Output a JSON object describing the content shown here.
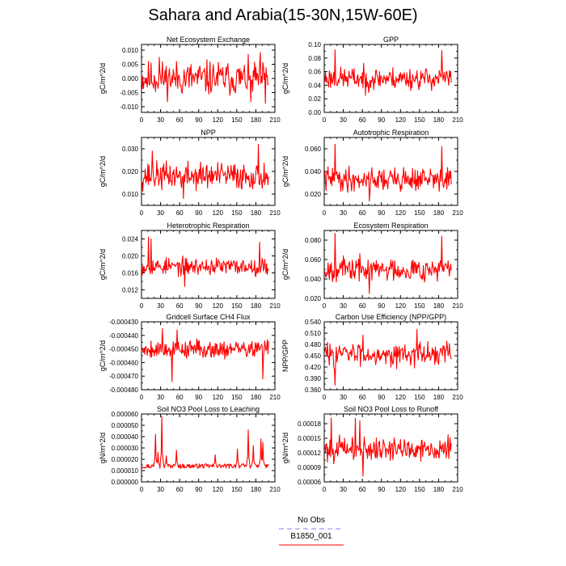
{
  "title": "Sahara and Arabia(15-30N,15W-60E)",
  "legend": {
    "entries": [
      {
        "label": "No Obs",
        "color": "#8080ff",
        "style": "dashed"
      },
      {
        "label": "B1850_001",
        "color": "#ff0000",
        "style": "solid"
      }
    ]
  },
  "colors": {
    "series": "#ff0000",
    "axis": "#000000",
    "background": "#ffffff"
  },
  "chart_data": [
    {
      "type": "line",
      "title": "Net Ecosystem Exchange",
      "ylabel": "gC/m^2/d",
      "xlim": [
        0,
        210
      ],
      "ylim": [
        -0.012,
        0.012
      ],
      "xticks": [
        0,
        30,
        60,
        90,
        120,
        150,
        180,
        210
      ],
      "yticks": [
        -0.01,
        -0.005,
        0.0,
        0.005,
        0.01
      ],
      "yticklabels": [
        "-0.010",
        "-0.005",
        "0.000",
        "0.005",
        "0.010"
      ],
      "series": [
        {
          "name": "B1850_001",
          "n": 200,
          "mean": 0.0,
          "amp": 0.0045,
          "min": -0.009,
          "max": 0.0095,
          "seed": 11,
          "spikes": [
            [
              186,
              0.0092
            ],
            [
              194,
              -0.0088
            ],
            [
              27,
              0.0075
            ],
            [
              171,
              -0.0082
            ]
          ]
        }
      ]
    },
    {
      "type": "line",
      "title": "GPP",
      "ylabel": "gC/m^2/d",
      "xlim": [
        0,
        210
      ],
      "ylim": [
        0.0,
        0.1
      ],
      "xticks": [
        0,
        30,
        60,
        90,
        120,
        150,
        180,
        210
      ],
      "yticks": [
        0.0,
        0.02,
        0.04,
        0.06,
        0.08,
        0.1
      ],
      "yticklabels": [
        "0.00",
        "0.02",
        "0.04",
        "0.06",
        "0.08",
        "0.10"
      ],
      "series": [
        {
          "name": "B1850_001",
          "n": 200,
          "mean": 0.05,
          "amp": 0.012,
          "min": 0.02,
          "max": 0.093,
          "seed": 23,
          "spikes": [
            [
              16,
              0.092
            ],
            [
              184,
              0.091
            ],
            [
              64,
              0.025
            ]
          ]
        }
      ]
    },
    {
      "type": "line",
      "title": "NPP",
      "ylabel": "gC/m^2/d",
      "xlim": [
        0,
        210
      ],
      "ylim": [
        0.005,
        0.035
      ],
      "xticks": [
        0,
        30,
        60,
        90,
        120,
        150,
        180,
        210
      ],
      "yticks": [
        0.01,
        0.02,
        0.03
      ],
      "yticklabels": [
        "0.010",
        "0.020",
        "0.030"
      ],
      "series": [
        {
          "name": "B1850_001",
          "n": 200,
          "mean": 0.018,
          "amp": 0.0045,
          "min": 0.007,
          "max": 0.033,
          "seed": 37,
          "spikes": [
            [
              183,
              0.032
            ],
            [
              16,
              0.029
            ],
            [
              65,
              0.008
            ]
          ]
        }
      ]
    },
    {
      "type": "line",
      "title": "Autotrophic Respiration",
      "ylabel": "gC/m^2/d",
      "xlim": [
        0,
        210
      ],
      "ylim": [
        0.01,
        0.07
      ],
      "xticks": [
        0,
        30,
        60,
        90,
        120,
        150,
        180,
        210
      ],
      "yticks": [
        0.02,
        0.04,
        0.06
      ],
      "yticklabels": [
        "0.020",
        "0.040",
        "0.060"
      ],
      "series": [
        {
          "name": "B1850_001",
          "n": 200,
          "mean": 0.033,
          "amp": 0.008,
          "min": 0.014,
          "max": 0.065,
          "seed": 41,
          "spikes": [
            [
              16,
              0.064
            ],
            [
              184,
              0.062
            ],
            [
              70,
              0.014
            ]
          ]
        }
      ]
    },
    {
      "type": "line",
      "title": "Heterotrophic Respiration",
      "ylabel": "gC/m^2/d",
      "xlim": [
        0,
        210
      ],
      "ylim": [
        0.01,
        0.026
      ],
      "xticks": [
        0,
        30,
        60,
        90,
        120,
        150,
        180,
        210
      ],
      "yticks": [
        0.012,
        0.016,
        0.02,
        0.024
      ],
      "yticklabels": [
        "0.012",
        "0.016",
        "0.020",
        "0.024"
      ],
      "series": [
        {
          "name": "B1850_001",
          "n": 200,
          "mean": 0.0175,
          "amp": 0.0015,
          "min": 0.0125,
          "max": 0.025,
          "seed": 53,
          "spikes": [
            [
              10,
              0.0245
            ],
            [
              14,
              0.024
            ],
            [
              67,
              0.0128
            ],
            [
              185,
              0.0232
            ]
          ]
        }
      ]
    },
    {
      "type": "line",
      "title": "Ecosystem Respiration",
      "ylabel": "gC/m^2/d",
      "xlim": [
        0,
        210
      ],
      "ylim": [
        0.02,
        0.09
      ],
      "xticks": [
        0,
        30,
        60,
        90,
        120,
        150,
        180,
        210
      ],
      "yticks": [
        0.02,
        0.04,
        0.06,
        0.08
      ],
      "yticklabels": [
        "0.020",
        "0.040",
        "0.060",
        "0.080"
      ],
      "series": [
        {
          "name": "B1850_001",
          "n": 200,
          "mean": 0.05,
          "amp": 0.009,
          "min": 0.024,
          "max": 0.088,
          "seed": 67,
          "spikes": [
            [
              16,
              0.087
            ],
            [
              184,
              0.084
            ],
            [
              70,
              0.025
            ]
          ]
        }
      ]
    },
    {
      "type": "line",
      "title": "Gridcell Surface CH4 Flux",
      "ylabel": "gC/m^2/d",
      "xlim": [
        0,
        210
      ],
      "ylim": [
        -0.00048,
        -0.00043
      ],
      "xticks": [
        0,
        30,
        60,
        90,
        120,
        150,
        180,
        210
      ],
      "yticks": [
        -0.00048,
        -0.00047,
        -0.00046,
        -0.00045,
        -0.00044,
        -0.00043
      ],
      "yticklabels": [
        "-0.000480",
        "-0.000470",
        "-0.000460",
        "-0.000450",
        "-0.000440",
        "-0.000430"
      ],
      "series": [
        {
          "name": "B1850_001",
          "n": 200,
          "mean": -0.00045,
          "amp": 5e-06,
          "min": -0.000476,
          "max": -0.000434,
          "seed": 79,
          "spikes": [
            [
              32,
              -0.000435
            ],
            [
              55,
              -0.000436
            ],
            [
              47,
              -0.000474
            ],
            [
              190,
              -0.000472
            ]
          ]
        }
      ]
    },
    {
      "type": "line",
      "title": "Carbon Use Efficiency (NPP/GPP)",
      "ylabel": "NPP/GPP",
      "xlim": [
        0,
        210
      ],
      "ylim": [
        0.36,
        0.54
      ],
      "xticks": [
        0,
        30,
        60,
        90,
        120,
        150,
        180,
        210
      ],
      "yticks": [
        0.36,
        0.39,
        0.42,
        0.45,
        0.48,
        0.51,
        0.54
      ],
      "yticklabels": [
        "0.360",
        "0.390",
        "0.420",
        "0.450",
        "0.480",
        "0.510",
        "0.540"
      ],
      "series": [
        {
          "name": "B1850_001",
          "n": 200,
          "mean": 0.455,
          "amp": 0.022,
          "min": 0.37,
          "max": 0.52,
          "seed": 83,
          "spikes": [
            [
              16,
              0.372
            ],
            [
              145,
              0.52
            ],
            [
              60,
              0.505
            ]
          ]
        }
      ]
    },
    {
      "type": "line",
      "title": "Soil NO3 Pool Loss to Leaching",
      "ylabel": "gN/m^2/d",
      "xlim": [
        0,
        210
      ],
      "ylim": [
        0.0,
        6e-05
      ],
      "xticks": [
        0,
        30,
        60,
        90,
        120,
        150,
        180,
        210
      ],
      "yticks": [
        0.0,
        1e-05,
        2e-05,
        3e-05,
        4e-05,
        5e-05,
        6e-05
      ],
      "yticklabels": [
        "0.000000",
        "0.000010",
        "0.000020",
        "0.000030",
        "0.000040",
        "0.000050",
        "0.000060"
      ],
      "series": [
        {
          "name": "B1850_001",
          "n": 200,
          "mean": 1.4e-05,
          "amp": 2e-06,
          "min": 8e-06,
          "max": 5.8e-05,
          "seed": 97,
          "peaky": true,
          "spikes": [
            [
              31,
              5.8e-05
            ],
            [
              21,
              4.2e-05
            ],
            [
              25,
              2.6e-05
            ],
            [
              38,
              2.3e-05
            ],
            [
              54,
              2.8e-05
            ],
            [
              115,
              2.4e-05
            ],
            [
              150,
              2.9e-05
            ],
            [
              167,
              4.6e-05
            ],
            [
              175,
              3.2e-05
            ],
            [
              187,
              3.8e-05
            ],
            [
              190,
              3.5e-05
            ]
          ]
        }
      ]
    },
    {
      "type": "line",
      "title": "Soil NO3 Pool Loss to Runoff",
      "ylabel": "gN/m^2/d",
      "xlim": [
        0,
        210
      ],
      "ylim": [
        6e-05,
        0.0002
      ],
      "xticks": [
        0,
        30,
        60,
        90,
        120,
        150,
        180,
        210
      ],
      "yticks": [
        6e-05,
        9e-05,
        0.00012,
        0.00015,
        0.00018
      ],
      "yticklabels": [
        "0.00006",
        "0.00009",
        "0.00012",
        "0.00015",
        "0.00018"
      ],
      "series": [
        {
          "name": "B1850_001",
          "n": 200,
          "mean": 0.000128,
          "amp": 1.8e-05,
          "min": 6.8e-05,
          "max": 0.000195,
          "seed": 101,
          "spikes": [
            [
              10,
              0.000192
            ],
            [
              48,
              0.000191
            ],
            [
              55,
              0.000186
            ],
            [
              60,
              7.2e-05
            ]
          ]
        }
      ]
    }
  ]
}
